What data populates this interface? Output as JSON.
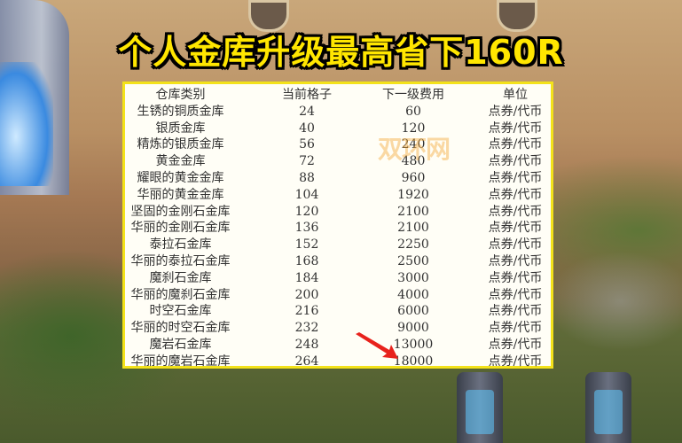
{
  "title": "个人金库升级最高省下160R",
  "watermark": "双环网",
  "table": {
    "headers": [
      "仓库类别",
      "当前格子",
      "下一级费用",
      "单位"
    ],
    "rows": [
      [
        "生锈的铜质金库",
        "24",
        "60",
        "点券/代币"
      ],
      [
        "银质金库",
        "40",
        "120",
        "点券/代币"
      ],
      [
        "精炼的银质金库",
        "56",
        "240",
        "点券/代币"
      ],
      [
        "黄金金库",
        "72",
        "480",
        "点券/代币"
      ],
      [
        "耀眼的黄金金库",
        "88",
        "960",
        "点券/代币"
      ],
      [
        "华丽的黄金金库",
        "104",
        "1920",
        "点券/代币"
      ],
      [
        "坚固的金刚石金库",
        "120",
        "2100",
        "点券/代币"
      ],
      [
        "华丽的金刚石金库",
        "136",
        "2100",
        "点券/代币"
      ],
      [
        "泰拉石金库",
        "152",
        "2250",
        "点券/代币"
      ],
      [
        "华丽的泰拉石金库",
        "168",
        "2500",
        "点券/代币"
      ],
      [
        "魔刹石金库",
        "184",
        "3000",
        "点券/代币"
      ],
      [
        "华丽的魔刹石金库",
        "200",
        "4000",
        "点券/代币"
      ],
      [
        "时空石金库",
        "216",
        "6000",
        "点券/代币"
      ],
      [
        "华丽的时空石金库",
        "232",
        "9000",
        "点券/代币"
      ],
      [
        "魔岩石金库",
        "248",
        "13000",
        "点券/代币"
      ],
      [
        "华丽的魔岩石金库",
        "264",
        "18000",
        "点券/代币"
      ]
    ]
  },
  "colors": {
    "title": "#ffe600",
    "border": "#f3e21a",
    "arrow": "#e8221c"
  }
}
